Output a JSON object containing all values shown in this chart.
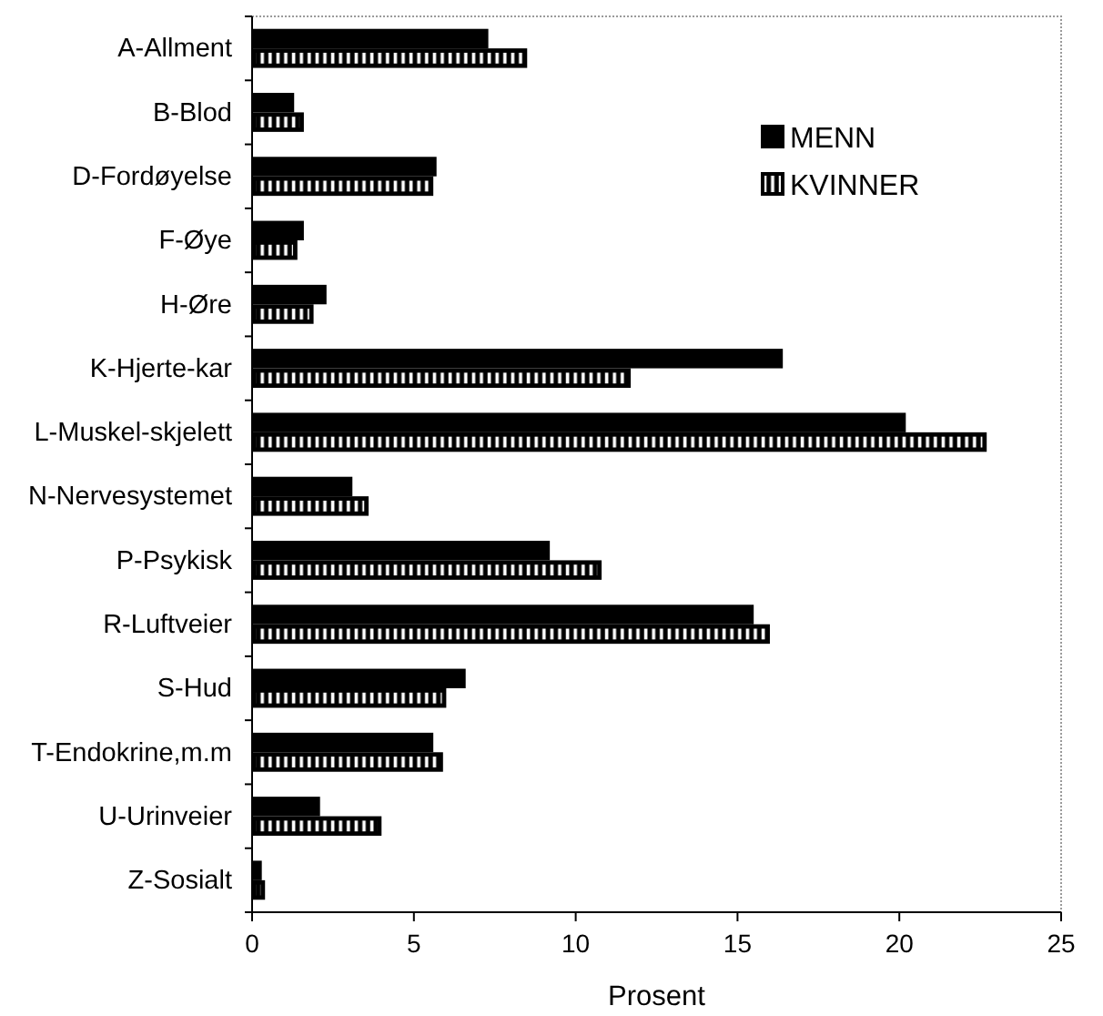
{
  "chart_data": {
    "type": "bar",
    "orientation": "horizontal",
    "categories": [
      "A-Allment",
      "B-Blod",
      "D-Fordøyelse",
      "F-Øye",
      "H-Øre",
      "K-Hjerte-kar",
      "L-Muskel-skjelett",
      "N-Nervesystemet",
      "P-Psykisk",
      "R-Luftveier",
      "S-Hud",
      "T-Endokrine,m.m",
      "U-Urinveier",
      "Z-Sosialt"
    ],
    "series": [
      {
        "name": "MENN",
        "color": "#000000",
        "values": [
          7.3,
          1.3,
          5.7,
          1.6,
          2.3,
          16.4,
          20.2,
          3.1,
          9.2,
          15.5,
          6.6,
          5.6,
          2.1,
          0.3
        ]
      },
      {
        "name": "KVINNER",
        "color": "#000000",
        "values": [
          8.5,
          1.6,
          5.6,
          1.4,
          1.9,
          11.7,
          22.7,
          3.6,
          10.8,
          16.0,
          6.0,
          5.9,
          4.0,
          0.4
        ]
      }
    ],
    "xlabel": "Prosent",
    "xlim": [
      0,
      25
    ],
    "xticks": [
      0,
      5,
      10,
      15,
      20,
      25
    ],
    "legend": "top right"
  }
}
